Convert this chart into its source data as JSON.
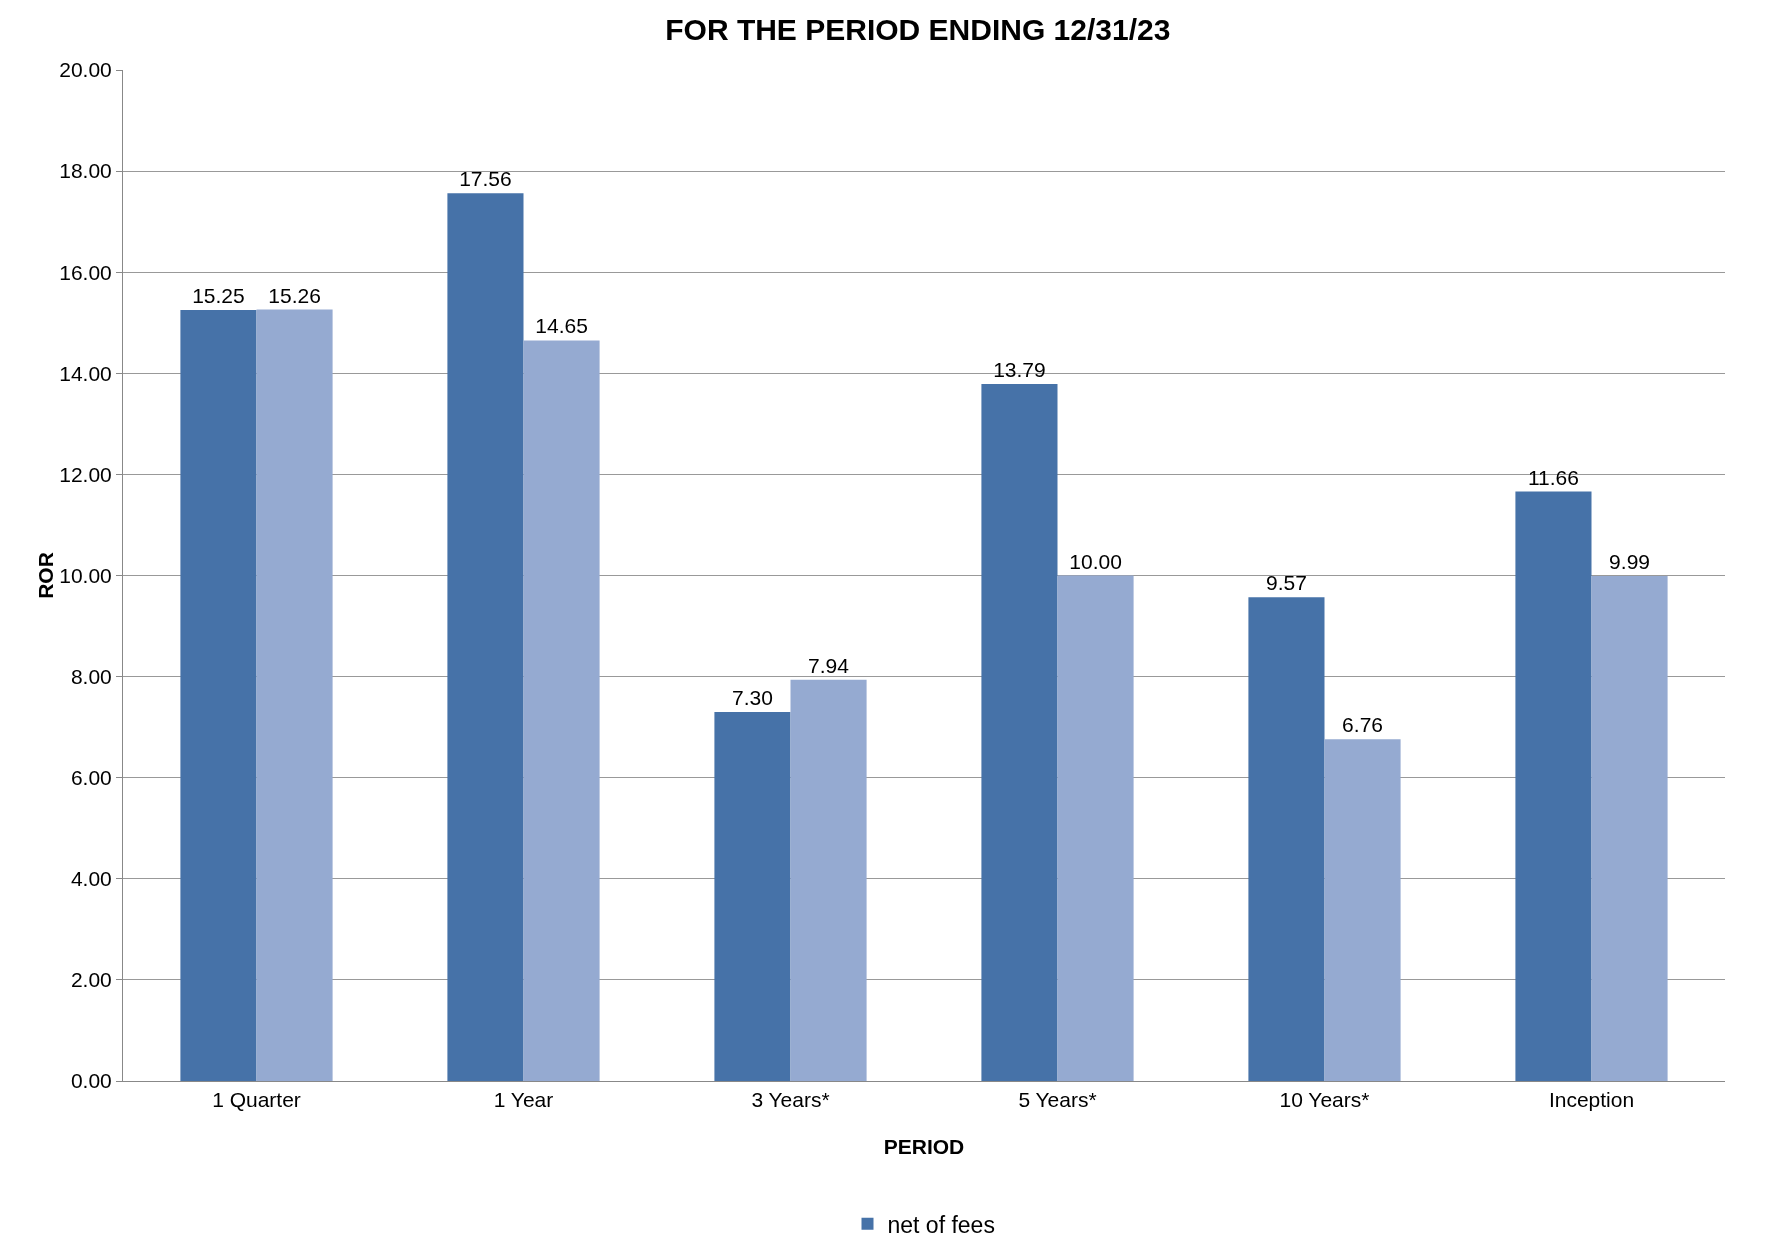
{
  "chart_data": {
    "type": "bar",
    "title": "FOR THE PERIOD ENDING 12/31/23",
    "xlabel": "PERIOD",
    "ylabel": "ROR",
    "categories": [
      "1 Quarter",
      "1 Year",
      "3 Years*",
      "5 Years*",
      "10 Years*",
      "Inception"
    ],
    "series": [
      {
        "name": "net of fees",
        "color": "#4672a8",
        "values": [
          15.25,
          17.56,
          7.3,
          13.79,
          9.57,
          11.66
        ],
        "value_labels": [
          "15.25",
          "17.56",
          "7.30",
          "13.79",
          "9.57",
          "11.66"
        ]
      },
      {
        "color": "#95aad1",
        "values": [
          15.26,
          14.65,
          7.94,
          10,
          6.76,
          9.99
        ],
        "value_labels": [
          "15.26",
          "14.65",
          "7.94",
          "10.00",
          "6.76",
          "9.99"
        ]
      }
    ],
    "ylim": [
      0,
      20
    ],
    "yticks": [
      {
        "value": 0,
        "label": "0.00"
      },
      {
        "value": 2,
        "label": "2.00"
      },
      {
        "value": 4,
        "label": "4.00"
      },
      {
        "value": 6,
        "label": "6.00"
      },
      {
        "value": 8,
        "label": "8.00"
      },
      {
        "value": 10,
        "label": "10.00"
      },
      {
        "value": 12,
        "label": "12.00"
      },
      {
        "value": 14,
        "label": "14.00"
      },
      {
        "value": 16,
        "label": "16.00"
      },
      {
        "value": 18,
        "label": "18.00"
      },
      {
        "value": 20,
        "label": "20.00"
      }
    ],
    "grid": "y",
    "legend": "bottom"
  }
}
